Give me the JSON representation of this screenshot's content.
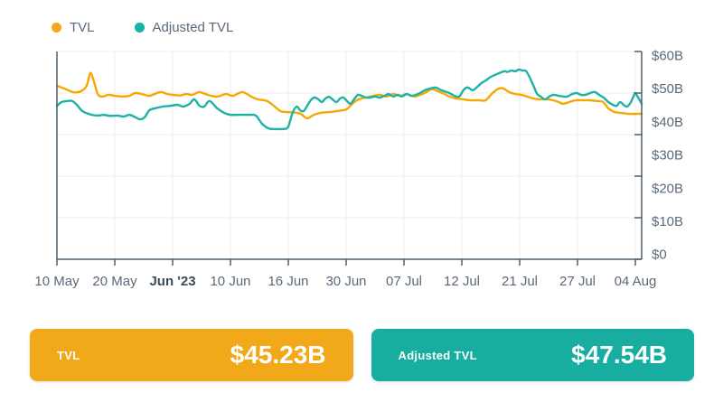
{
  "legend": {
    "items": [
      {
        "label": "TVL",
        "color": "#F5A81A"
      },
      {
        "label": "Adjusted TVL",
        "color": "#17B2A6"
      }
    ]
  },
  "colors": {
    "axis": "#4e5f6d",
    "grid": "#ededed",
    "tick_text": "#5a6a78",
    "bold_tick_text": "#3c4a56"
  },
  "cards": [
    {
      "label": "TVL",
      "value": "$45.23B",
      "color": "#F2A919"
    },
    {
      "label": "Adjusted TVL",
      "value": "$47.54B",
      "color": "#17AEA1"
    }
  ],
  "chart_data": {
    "type": "line",
    "title": "",
    "xlabel": "",
    "ylabel": "",
    "grid": true,
    "legend_position": "top-left",
    "x_axis": {
      "tick_labels": [
        "10 May",
        "20 May",
        "Jun '23",
        "10 Jun",
        "16 Jun",
        "30 Jun",
        "07 Jul",
        "12 Jul",
        "21 Jul",
        "27 Jul",
        "04 Aug"
      ],
      "bold_tick": "Jun '23",
      "range": "10 May 2023 - 04 Aug 2023"
    },
    "y_axis": {
      "tick_labels": [
        "$60B",
        "$50B",
        "$40B",
        "$30B",
        "$20B",
        "$10B",
        "$0"
      ],
      "lim": [
        0,
        60
      ],
      "unit": "$B"
    },
    "series": [
      {
        "name": "TVL",
        "color": "#F5A800",
        "points": [
          [
            0.0,
            50.1
          ],
          [
            0.014,
            49.2
          ],
          [
            0.029,
            48.2
          ],
          [
            0.042,
            48.6
          ],
          [
            0.051,
            50.2
          ],
          [
            0.057,
            53.8
          ],
          [
            0.063,
            51.5
          ],
          [
            0.07,
            47.6
          ],
          [
            0.079,
            47.0
          ],
          [
            0.088,
            47.5
          ],
          [
            0.099,
            47.2
          ],
          [
            0.111,
            47.0
          ],
          [
            0.124,
            47.2
          ],
          [
            0.134,
            48.0
          ],
          [
            0.147,
            47.6
          ],
          [
            0.158,
            47.2
          ],
          [
            0.168,
            47.8
          ],
          [
            0.178,
            48.3
          ],
          [
            0.189,
            47.7
          ],
          [
            0.199,
            47.5
          ],
          [
            0.21,
            47.3
          ],
          [
            0.221,
            47.7
          ],
          [
            0.232,
            47.5
          ],
          [
            0.243,
            48.3
          ],
          [
            0.253,
            47.8
          ],
          [
            0.264,
            47.2
          ],
          [
            0.275,
            47.0
          ],
          [
            0.289,
            47.7
          ],
          [
            0.301,
            47.2
          ],
          [
            0.317,
            48.3
          ],
          [
            0.332,
            47.0
          ],
          [
            0.343,
            46.2
          ],
          [
            0.359,
            45.7
          ],
          [
            0.371,
            44.3
          ],
          [
            0.382,
            42.8
          ],
          [
            0.394,
            42.5
          ],
          [
            0.406,
            42.4
          ],
          [
            0.417,
            42.0
          ],
          [
            0.428,
            40.7
          ],
          [
            0.439,
            41.7
          ],
          [
            0.451,
            42.3
          ],
          [
            0.467,
            42.5
          ],
          [
            0.479,
            42.8
          ],
          [
            0.495,
            43.3
          ],
          [
            0.505,
            44.9
          ],
          [
            0.516,
            46.2
          ],
          [
            0.529,
            46.7
          ],
          [
            0.541,
            47.2
          ],
          [
            0.552,
            47.5
          ],
          [
            0.564,
            47.0
          ],
          [
            0.575,
            47.7
          ],
          [
            0.587,
            47.2
          ],
          [
            0.598,
            47.7
          ],
          [
            0.611,
            47.0
          ],
          [
            0.621,
            47.5
          ],
          [
            0.629,
            48.0
          ],
          [
            0.641,
            49.1
          ],
          [
            0.652,
            48.5
          ],
          [
            0.663,
            47.7
          ],
          [
            0.671,
            47.0
          ],
          [
            0.683,
            46.4
          ],
          [
            0.696,
            46.2
          ],
          [
            0.706,
            45.9
          ],
          [
            0.722,
            45.9
          ],
          [
            0.733,
            45.9
          ],
          [
            0.745,
            48.0
          ],
          [
            0.756,
            49.3
          ],
          [
            0.764,
            49.3
          ],
          [
            0.773,
            48.3
          ],
          [
            0.784,
            47.7
          ],
          [
            0.794,
            47.5
          ],
          [
            0.804,
            47.0
          ],
          [
            0.815,
            46.4
          ],
          [
            0.825,
            46.2
          ],
          [
            0.838,
            46.2
          ],
          [
            0.849,
            45.9
          ],
          [
            0.858,
            45.4
          ],
          [
            0.866,
            44.9
          ],
          [
            0.876,
            45.4
          ],
          [
            0.887,
            45.9
          ],
          [
            0.9,
            45.9
          ],
          [
            0.912,
            45.9
          ],
          [
            0.923,
            45.7
          ],
          [
            0.934,
            45.4
          ],
          [
            0.943,
            43.6
          ],
          [
            0.954,
            42.5
          ],
          [
            0.964,
            42.3
          ],
          [
            0.977,
            42.0
          ],
          [
            0.989,
            42.0
          ],
          [
            1.0,
            42.0
          ]
        ]
      },
      {
        "name": "Adjusted TVL",
        "color": "#1CB2A6",
        "points": [
          [
            0.0,
            44.3
          ],
          [
            0.008,
            45.4
          ],
          [
            0.019,
            45.7
          ],
          [
            0.026,
            45.7
          ],
          [
            0.034,
            44.6
          ],
          [
            0.042,
            43.0
          ],
          [
            0.049,
            42.3
          ],
          [
            0.06,
            41.7
          ],
          [
            0.07,
            41.5
          ],
          [
            0.08,
            41.7
          ],
          [
            0.091,
            41.4
          ],
          [
            0.104,
            41.5
          ],
          [
            0.114,
            41.2
          ],
          [
            0.124,
            41.7
          ],
          [
            0.134,
            41.0
          ],
          [
            0.142,
            40.4
          ],
          [
            0.15,
            41.0
          ],
          [
            0.158,
            43.0
          ],
          [
            0.168,
            43.6
          ],
          [
            0.181,
            44.1
          ],
          [
            0.193,
            44.3
          ],
          [
            0.206,
            44.6
          ],
          [
            0.216,
            44.1
          ],
          [
            0.227,
            44.9
          ],
          [
            0.235,
            46.2
          ],
          [
            0.244,
            44.3
          ],
          [
            0.252,
            44.1
          ],
          [
            0.261,
            45.7
          ],
          [
            0.274,
            43.6
          ],
          [
            0.286,
            42.3
          ],
          [
            0.297,
            41.7
          ],
          [
            0.312,
            41.7
          ],
          [
            0.328,
            41.7
          ],
          [
            0.34,
            41.5
          ],
          [
            0.351,
            39.1
          ],
          [
            0.362,
            37.8
          ],
          [
            0.374,
            37.6
          ],
          [
            0.385,
            37.6
          ],
          [
            0.393,
            37.8
          ],
          [
            0.397,
            38.9
          ],
          [
            0.403,
            42.3
          ],
          [
            0.41,
            44.1
          ],
          [
            0.416,
            43.0
          ],
          [
            0.422,
            42.8
          ],
          [
            0.428,
            44.3
          ],
          [
            0.434,
            45.9
          ],
          [
            0.44,
            46.7
          ],
          [
            0.447,
            46.2
          ],
          [
            0.453,
            45.4
          ],
          [
            0.459,
            46.4
          ],
          [
            0.465,
            46.9
          ],
          [
            0.471,
            46.2
          ],
          [
            0.478,
            45.4
          ],
          [
            0.484,
            46.4
          ],
          [
            0.49,
            46.7
          ],
          [
            0.496,
            45.7
          ],
          [
            0.502,
            44.9
          ],
          [
            0.509,
            46.4
          ],
          [
            0.515,
            47.5
          ],
          [
            0.521,
            47.2
          ],
          [
            0.529,
            46.7
          ],
          [
            0.536,
            46.7
          ],
          [
            0.544,
            47.0
          ],
          [
            0.552,
            46.7
          ],
          [
            0.56,
            47.2
          ],
          [
            0.567,
            47.7
          ],
          [
            0.575,
            47.0
          ],
          [
            0.583,
            47.5
          ],
          [
            0.59,
            47.0
          ],
          [
            0.598,
            47.7
          ],
          [
            0.606,
            47.2
          ],
          [
            0.614,
            47.5
          ],
          [
            0.621,
            48.0
          ],
          [
            0.629,
            48.8
          ],
          [
            0.638,
            49.3
          ],
          [
            0.648,
            49.6
          ],
          [
            0.655,
            49.0
          ],
          [
            0.663,
            48.5
          ],
          [
            0.671,
            48.0
          ],
          [
            0.68,
            47.2
          ],
          [
            0.688,
            47.0
          ],
          [
            0.696,
            49.0
          ],
          [
            0.703,
            49.6
          ],
          [
            0.711,
            48.8
          ],
          [
            0.719,
            49.8
          ],
          [
            0.726,
            50.9
          ],
          [
            0.734,
            51.7
          ],
          [
            0.742,
            52.7
          ],
          [
            0.75,
            53.3
          ],
          [
            0.757,
            53.8
          ],
          [
            0.765,
            54.3
          ],
          [
            0.771,
            54.1
          ],
          [
            0.777,
            54.5
          ],
          [
            0.784,
            54.3
          ],
          [
            0.79,
            54.8
          ],
          [
            0.796,
            54.5
          ],
          [
            0.802,
            54.4
          ],
          [
            0.808,
            52.7
          ],
          [
            0.815,
            50.1
          ],
          [
            0.821,
            47.8
          ],
          [
            0.827,
            47.0
          ],
          [
            0.835,
            46.2
          ],
          [
            0.842,
            47.0
          ],
          [
            0.85,
            47.5
          ],
          [
            0.858,
            47.2
          ],
          [
            0.866,
            47.0
          ],
          [
            0.873,
            47.0
          ],
          [
            0.881,
            47.7
          ],
          [
            0.889,
            48.0
          ],
          [
            0.896,
            47.5
          ],
          [
            0.904,
            47.5
          ],
          [
            0.912,
            48.0
          ],
          [
            0.92,
            48.3
          ],
          [
            0.927,
            47.5
          ],
          [
            0.935,
            46.7
          ],
          [
            0.943,
            45.4
          ],
          [
            0.951,
            44.6
          ],
          [
            0.957,
            44.3
          ],
          [
            0.963,
            45.4
          ],
          [
            0.969,
            44.6
          ],
          [
            0.975,
            44.1
          ],
          [
            0.981,
            45.2
          ],
          [
            0.986,
            47.0
          ],
          [
            0.989,
            48.0
          ],
          [
            0.994,
            46.7
          ],
          [
            1.0,
            44.9
          ]
        ]
      }
    ]
  }
}
